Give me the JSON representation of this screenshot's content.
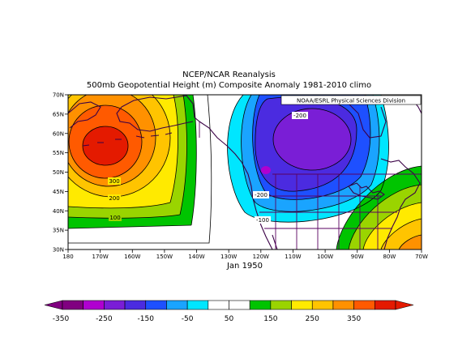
{
  "header": {
    "line1": "NCEP/NCAR Reanalysis",
    "line2": "500mb Geopotential Height (m) Composite Anomaly 1981-2010 climo"
  },
  "credit": "NOAA/ESRL Physical Sciences Division",
  "period": "Jan 1950",
  "map": {
    "lat_labels": [
      "70N",
      "65N",
      "60N",
      "55N",
      "50N",
      "45N",
      "40N",
      "35N",
      "30N"
    ],
    "lon_labels": [
      "180",
      "170W",
      "160W",
      "150W",
      "140W",
      "130W",
      "120W",
      "110W",
      "100W",
      "90W",
      "80W",
      "70W"
    ],
    "contour_labels": [
      "300",
      "200",
      "100",
      "-200",
      "-200",
      "-100"
    ]
  },
  "colorbar": {
    "ticks": [
      "-350",
      "-250",
      "-150",
      "-50",
      "50",
      "150",
      "250",
      "350"
    ],
    "colors": [
      "#800080",
      "#b000d0",
      "#7a1ed6",
      "#4b2be0",
      "#1e50ff",
      "#1aa4ff",
      "#00e6ff",
      "#ffffff",
      "#ffffff",
      "#00c400",
      "#9ad400",
      "#ffea00",
      "#ffc400",
      "#ff9100",
      "#ff5a00",
      "#e41a00"
    ]
  },
  "chart_data": {
    "type": "heatmap",
    "title": "500mb Geopotential Height (m) Composite Anomaly 1981-2010 climo",
    "variable": "500mb geopotential height anomaly (m)",
    "period": "Jan 1950",
    "lon_range": [
      "180",
      "70W"
    ],
    "lat_range": [
      "30N",
      "70N"
    ],
    "contour_interval": 50,
    "colorbar_range": [
      -350,
      350
    ],
    "features": [
      {
        "type": "high",
        "center_lon": "165W",
        "center_lat": "57N",
        "max_anomaly": 350
      },
      {
        "type": "low",
        "center_lon": "112W",
        "center_lat": "55N",
        "min_anomaly": -250
      },
      {
        "type": "high",
        "center_lon": "75W",
        "center_lat": "37N",
        "max_anomaly": 250
      }
    ]
  }
}
